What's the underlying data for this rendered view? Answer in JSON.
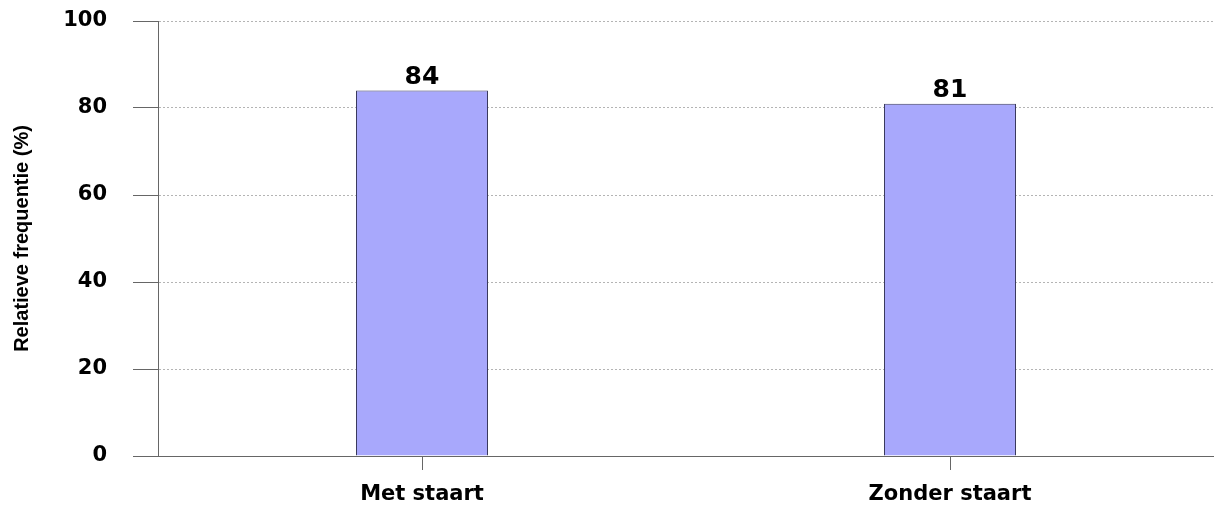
{
  "chart_data": {
    "type": "bar",
    "categories": [
      "Met staart",
      "Zonder staart"
    ],
    "values": [
      84,
      81
    ],
    "color": "#a8a8fc",
    "ylabel": "Relatieve frequentie (%)",
    "ylim": [
      0,
      100
    ],
    "yticks": [
      0,
      20,
      40,
      60,
      80,
      100
    ],
    "grid": "y",
    "data_labels": true
  }
}
